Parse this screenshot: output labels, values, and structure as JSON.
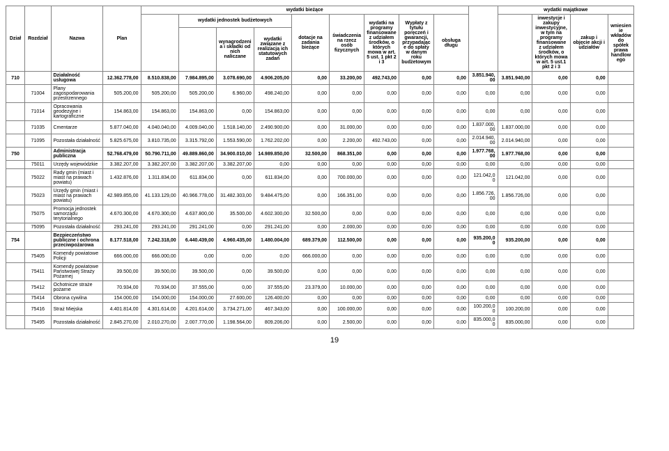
{
  "headers": {
    "group_biezace": "wydatki bieżące",
    "group_majatkowe": "wydatki majątkowe",
    "group_jednostek": "wydatki jednostek budżetowych",
    "dzial": "Dział",
    "rozdzial": "Rozdział",
    "nazwa": "Nazwa",
    "plan": "Plan",
    "wynagrodzenia": "wynagrodzenia i składki od nich naliczane",
    "wydatki_zwiazane": "wydatki związane z realizacją ich statutowych zadań",
    "dotacje": "dotacje na zadania bieżące",
    "swiadczenia": "świadczenia na rzecz osób fizycznych",
    "wydatki_programy": "wydatki na programy finansowane z udziałem środków, o których mowa w art. 5 ust. 1 pkt 2 i 3",
    "wyplaty": "Wypłaty z tytułu poręczeń i gwarancji, przypadające do spłaty w danym roku budżetowym",
    "obsluga": "obsługa długu",
    "inwestycje": "inwestycje i zakupy inwestycyjne, w tym na programy finansowane z udziałem środków, o których mowa w art. 5 ust.1 pkt 2 i 3",
    "zakup": "zakup i objęcie akcji i udziałów",
    "wniesienie": "wniesienie wkładów do spółek prawa handlowego",
    "blank": ""
  },
  "rows": [
    {
      "bold": true,
      "dzial": "710",
      "rozdzial": "",
      "nazwa": "Działalność usługowa",
      "plan": "12.362.778,00",
      "c1": "8.510.838,00",
      "c2": "7.984.895,00",
      "c3": "3.078.690,00",
      "c4": "4.906.205,00",
      "c5": "0,00",
      "c6": "33.200,00",
      "c7": "492.743,00",
      "c8": "0,00",
      "c9": "0,00",
      "c10": "3.851.940,00",
      "c11": "3.851.940,00",
      "c12": "0,00",
      "c13": "0,00"
    },
    {
      "dzial": "",
      "rozdzial": "71004",
      "nazwa": "Plany zagospodarowania przestrzennego",
      "plan": "505.200,00",
      "c1": "505.200,00",
      "c2": "505.200,00",
      "c3": "6.960,00",
      "c4": "498.240,00",
      "c5": "0,00",
      "c6": "0,00",
      "c7": "0,00",
      "c8": "0,00",
      "c9": "0,00",
      "c10": "0,00",
      "c11": "0,00",
      "c12": "0,00",
      "c13": "0,00"
    },
    {
      "dzial": "",
      "rozdzial": "71014",
      "nazwa": "Opracowania geodezyjne i kartograficzne",
      "plan": "154.863,00",
      "c1": "154.863,00",
      "c2": "154.863,00",
      "c3": "0,00",
      "c4": "154.863,00",
      "c5": "0,00",
      "c6": "0,00",
      "c7": "0,00",
      "c8": "0,00",
      "c9": "0,00",
      "c10": "0,00",
      "c11": "0,00",
      "c12": "0,00",
      "c13": "0,00"
    },
    {
      "dzial": "",
      "rozdzial": "71035",
      "nazwa": "Cmentarze",
      "plan": "5.877.040,00",
      "c1": "4.040.040,00",
      "c2": "4.009.040,00",
      "c3": "1.518.140,00",
      "c4": "2.490.900,00",
      "c5": "0,00",
      "c6": "31.000,00",
      "c7": "0,00",
      "c8": "0,00",
      "c9": "0,00",
      "c10": "1.837.000,00",
      "c11": "1.837.000,00",
      "c12": "0,00",
      "c13": "0,00"
    },
    {
      "dzial": "",
      "rozdzial": "71095",
      "nazwa": "Pozostała działalność",
      "plan": "5.825.675,00",
      "c1": "3.810.735,00",
      "c2": "3.315.792,00",
      "c3": "1.553.590,00",
      "c4": "1.762.202,00",
      "c5": "0,00",
      "c6": "2.200,00",
      "c7": "492.743,00",
      "c8": "0,00",
      "c9": "0,00",
      "c10": "2.014.940,00",
      "c11": "2.014.940,00",
      "c12": "0,00",
      "c13": "0,00"
    },
    {
      "bold": true,
      "dzial": "750",
      "rozdzial": "",
      "nazwa": "Administracja publiczna",
      "plan": "52.768.479,00",
      "c1": "50.790.711,00",
      "c2": "49.889.860,00",
      "c3": "34.900.010,00",
      "c4": "14.989.850,00",
      "c5": "32.500,00",
      "c6": "868.351,00",
      "c7": "0,00",
      "c8": "0,00",
      "c9": "0,00",
      "c10": "1.977.768,00",
      "c11": "1.977.768,00",
      "c12": "0,00",
      "c13": "0,00"
    },
    {
      "dzial": "",
      "rozdzial": "75011",
      "nazwa": "Urzędy wojewódzkie",
      "plan": "3.382.207,00",
      "c1": "3.382.207,00",
      "c2": "3.382.207,00",
      "c3": "3.382.207,00",
      "c4": "0,00",
      "c5": "0,00",
      "c6": "0,00",
      "c7": "0,00",
      "c8": "0,00",
      "c9": "0,00",
      "c10": "0,00",
      "c11": "0,00",
      "c12": "0,00",
      "c13": "0,00"
    },
    {
      "dzial": "",
      "rozdzial": "75022",
      "nazwa": "Rady gmin (miast i miast na prawach powiatu)",
      "plan": "1.432.876,00",
      "c1": "1.311.834,00",
      "c2": "611.834,00",
      "c3": "0,00",
      "c4": "611.834,00",
      "c5": "0,00",
      "c6": "700.000,00",
      "c7": "0,00",
      "c8": "0,00",
      "c9": "0,00",
      "c10": "121.042,00",
      "c11": "121.042,00",
      "c12": "0,00",
      "c13": "0,00"
    },
    {
      "dzial": "",
      "rozdzial": "75023",
      "nazwa": "Urzędy gmin (miast i miast na prawach powiatu)",
      "plan": "42.989.855,00",
      "c1": "41.133.129,00",
      "c2": "40.966.778,00",
      "c3": "31.482.303,00",
      "c4": "9.484.475,00",
      "c5": "0,00",
      "c6": "166.351,00",
      "c7": "0,00",
      "c8": "0,00",
      "c9": "0,00",
      "c10": "1.856.726,00",
      "c11": "1.856.726,00",
      "c12": "0,00",
      "c13": "0,00"
    },
    {
      "dzial": "",
      "rozdzial": "75075",
      "nazwa": "Promocja jednostek samorządu terytorialnego",
      "plan": "4.670.300,00",
      "c1": "4.670.300,00",
      "c2": "4.637.800,00",
      "c3": "35.500,00",
      "c4": "4.602.300,00",
      "c5": "32.500,00",
      "c6": "0,00",
      "c7": "0,00",
      "c8": "0,00",
      "c9": "0,00",
      "c10": "0,00",
      "c11": "0,00",
      "c12": "0,00",
      "c13": "0,00"
    },
    {
      "dzial": "",
      "rozdzial": "75095",
      "nazwa": "Pozostała działalność",
      "plan": "293.241,00",
      "c1": "293.241,00",
      "c2": "291.241,00",
      "c3": "0,00",
      "c4": "291.241,00",
      "c5": "0,00",
      "c6": "2.000,00",
      "c7": "0,00",
      "c8": "0,00",
      "c9": "0,00",
      "c10": "0,00",
      "c11": "0,00",
      "c12": "0,00",
      "c13": "0,00"
    },
    {
      "bold": true,
      "dzial": "754",
      "rozdzial": "",
      "nazwa": "Bezpieczeństwo publiczne i ochrona przeciwpożarowa",
      "plan": "8.177.518,00",
      "c1": "7.242.318,00",
      "c2": "6.440.439,00",
      "c3": "4.960.435,00",
      "c4": "1.480.004,00",
      "c5": "689.379,00",
      "c6": "112.500,00",
      "c7": "0,00",
      "c8": "0,00",
      "c9": "0,00",
      "c10": "935.200,00",
      "c11": "935.200,00",
      "c12": "0,00",
      "c13": "0,00"
    },
    {
      "dzial": "",
      "rozdzial": "75405",
      "nazwa": "Komendy powiatowe Policji",
      "plan": "666.000,00",
      "c1": "666.000,00",
      "c2": "0,00",
      "c3": "0,00",
      "c4": "0,00",
      "c5": "666.000,00",
      "c6": "0,00",
      "c7": "0,00",
      "c8": "0,00",
      "c9": "0,00",
      "c10": "0,00",
      "c11": "0,00",
      "c12": "0,00",
      "c13": "0,00"
    },
    {
      "dzial": "",
      "rozdzial": "75411",
      "nazwa": "Komendy powiatowe Państwowej Straży Pożarnej",
      "plan": "39.500,00",
      "c1": "39.500,00",
      "c2": "39.500,00",
      "c3": "0,00",
      "c4": "39.500,00",
      "c5": "0,00",
      "c6": "0,00",
      "c7": "0,00",
      "c8": "0,00",
      "c9": "0,00",
      "c10": "0,00",
      "c11": "0,00",
      "c12": "0,00",
      "c13": "0,00"
    },
    {
      "dzial": "",
      "rozdzial": "75412",
      "nazwa": "Ochotnicze straże pożarne",
      "plan": "70.934,00",
      "c1": "70.934,00",
      "c2": "37.555,00",
      "c3": "0,00",
      "c4": "37.555,00",
      "c5": "23.379,00",
      "c6": "10.000,00",
      "c7": "0,00",
      "c8": "0,00",
      "c9": "0,00",
      "c10": "0,00",
      "c11": "0,00",
      "c12": "0,00",
      "c13": "0,00"
    },
    {
      "dzial": "",
      "rozdzial": "75414",
      "nazwa": "Obrona cywilna",
      "plan": "154.000,00",
      "c1": "154.000,00",
      "c2": "154.000,00",
      "c3": "27.600,00",
      "c4": "126.400,00",
      "c5": "0,00",
      "c6": "0,00",
      "c7": "0,00",
      "c8": "0,00",
      "c9": "0,00",
      "c10": "0,00",
      "c11": "0,00",
      "c12": "0,00",
      "c13": "0,00"
    },
    {
      "dzial": "",
      "rozdzial": "75416",
      "nazwa": "Straż Miejska",
      "plan": "4.401.814,00",
      "c1": "4.301.614,00",
      "c2": "4.201.614,00",
      "c3": "3.734.271,00",
      "c4": "467.343,00",
      "c5": "0,00",
      "c6": "100.000,00",
      "c7": "0,00",
      "c8": "0,00",
      "c9": "0,00",
      "c10": "100.200,00",
      "c11": "100.200,00",
      "c12": "0,00",
      "c13": "0,00"
    },
    {
      "dzial": "",
      "rozdzial": "75495",
      "nazwa": "Pozostała działalność",
      "plan": "2.845.270,00",
      "c1": "2.010.270,00",
      "c2": "2.007.770,00",
      "c3": "1.198.564,00",
      "c4": "809.206,00",
      "c5": "0,00",
      "c6": "2.500,00",
      "c7": "0,00",
      "c8": "0,00",
      "c9": "0,00",
      "c10": "835.000,00",
      "c11": "835.000,00",
      "c12": "0,00",
      "c13": "0,00"
    }
  ],
  "page_number": "19",
  "col_widths": [
    "26",
    "36",
    "72",
    "52",
    "52",
    "52",
    "52",
    "52",
    "52",
    "48",
    "48",
    "48",
    "48",
    "40",
    "48",
    "52",
    "52",
    "36",
    "40"
  ]
}
